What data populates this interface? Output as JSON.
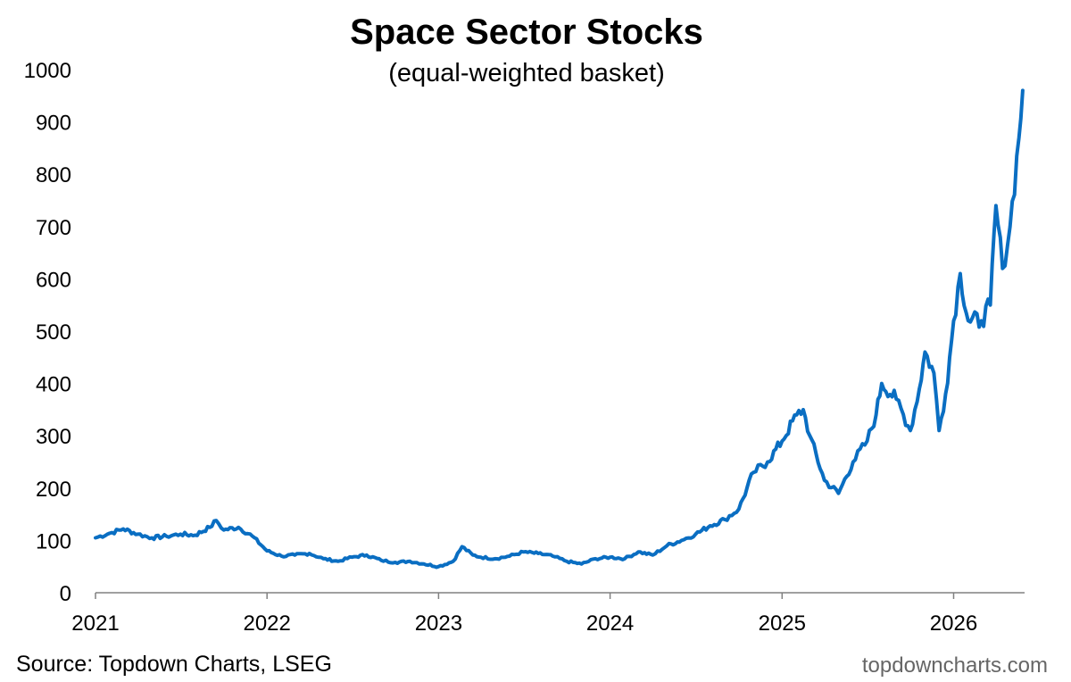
{
  "chart_data": {
    "type": "line",
    "title": "Space Sector Stocks",
    "subtitle": "(equal-weighted basket)",
    "xlabel": "",
    "ylabel": "",
    "x_ticks": [
      "2021",
      "2022",
      "2023",
      "2024",
      "2025",
      "2026"
    ],
    "y_ticks": [
      "0",
      "100",
      "200",
      "300",
      "400",
      "500",
      "600",
      "700",
      "800",
      "900",
      "1000"
    ],
    "xlim": [
      "2021-01-01",
      "2026-06-01"
    ],
    "ylim": [
      0,
      1000
    ],
    "grid": false,
    "legend": "none",
    "series": [
      {
        "color": "#0a6ec2",
        "x": [
          "2021-01-01",
          "2021-02-05",
          "2021-03-01",
          "2021-04-01",
          "2021-05-01",
          "2021-06-01",
          "2021-07-01",
          "2021-08-01",
          "2021-09-01",
          "2021-09-15",
          "2021-10-01",
          "2021-11-01",
          "2021-12-01",
          "2022-01-01",
          "2022-02-01",
          "2022-03-01",
          "2022-04-01",
          "2022-05-01",
          "2022-06-01",
          "2022-07-01",
          "2022-08-01",
          "2022-09-01",
          "2022-10-01",
          "2022-11-01",
          "2022-12-01",
          "2023-01-01",
          "2023-02-01",
          "2023-02-20",
          "2023-03-15",
          "2023-04-01",
          "2023-05-01",
          "2023-06-01",
          "2023-07-01",
          "2023-08-01",
          "2023-09-01",
          "2023-10-01",
          "2023-11-01",
          "2023-12-01",
          "2024-01-01",
          "2024-02-01",
          "2024-03-01",
          "2024-04-01",
          "2024-05-01",
          "2024-06-01",
          "2024-07-01",
          "2024-08-01",
          "2024-09-01",
          "2024-10-01",
          "2024-11-01",
          "2024-12-01",
          "2025-01-01",
          "2025-02-01",
          "2025-02-15",
          "2025-03-01",
          "2025-04-01",
          "2025-05-01",
          "2025-06-01",
          "2025-07-01",
          "2025-07-20",
          "2025-08-01",
          "2025-09-01",
          "2025-10-01",
          "2025-10-20",
          "2025-11-01",
          "2025-11-20",
          "2025-12-01",
          "2025-12-15",
          "2026-01-01",
          "2026-01-15",
          "2026-02-01",
          "2026-03-01",
          "2026-03-20",
          "2026-04-01",
          "2026-04-15",
          "2026-05-01",
          "2026-05-20",
          "2026-05-28"
        ],
        "values": [
          105,
          115,
          122,
          112,
          105,
          108,
          112,
          110,
          125,
          138,
          120,
          125,
          108,
          80,
          70,
          72,
          75,
          65,
          60,
          68,
          72,
          62,
          58,
          60,
          55,
          50,
          60,
          88,
          72,
          68,
          65,
          70,
          78,
          75,
          70,
          60,
          55,
          65,
          68,
          65,
          78,
          72,
          90,
          100,
          112,
          128,
          140,
          160,
          230,
          250,
          290,
          340,
          350,
          300,
          215,
          190,
          250,
          290,
          340,
          400,
          370,
          310,
          390,
          460,
          420,
          310,
          380,
          520,
          610,
          520,
          520,
          550,
          740,
          620,
          700,
          870,
          960
        ]
      }
    ]
  },
  "footer": {
    "source": "Source: Topdown Charts, LSEG",
    "watermark": "topdowncharts.com"
  }
}
